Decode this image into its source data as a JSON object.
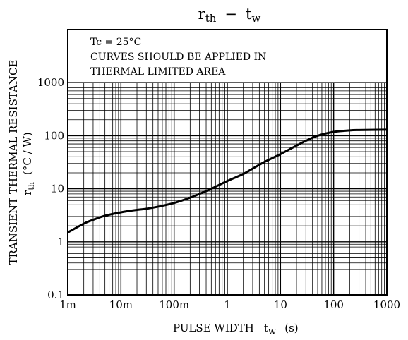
{
  "chart_data": {
    "type": "line",
    "title": {
      "main_a": "r",
      "sub_a": "th",
      "dash": "−",
      "main_b": "t",
      "sub_b": "w"
    },
    "annotations": [
      "Tc = 25°C",
      "CURVES SHOULD BE APPLIED IN",
      "THERMAL LIMITED AREA"
    ],
    "xlabel": {
      "text": "PULSE WIDTH",
      "symbol_main": "t",
      "symbol_sub": "W",
      "unit": "(s)"
    },
    "ylabel": {
      "line1": "TRANSIENT THERMAL RESISTANCE",
      "symbol_main": "r",
      "symbol_sub": "th",
      "unit": "(°C / W)"
    },
    "x_scale": "log",
    "y_scale": "log",
    "xlim": [
      0.001,
      1000
    ],
    "ylim": [
      0.1,
      10000
    ],
    "x_ticks": [
      {
        "value": 0.001,
        "label": "1m"
      },
      {
        "value": 0.01,
        "label": "10m"
      },
      {
        "value": 0.1,
        "label": "100m"
      },
      {
        "value": 1,
        "label": "1"
      },
      {
        "value": 10,
        "label": "10"
      },
      {
        "value": 100,
        "label": "100"
      },
      {
        "value": 1000,
        "label": "1000"
      }
    ],
    "y_ticks": [
      {
        "value": 0.1,
        "label": "0.1"
      },
      {
        "value": 1,
        "label": "1"
      },
      {
        "value": 10,
        "label": "10"
      },
      {
        "value": 100,
        "label": "100"
      },
      {
        "value": 1000,
        "label": "1000"
      }
    ],
    "grid": true,
    "series": [
      {
        "x": [
          0.001,
          0.002,
          0.003,
          0.005,
          0.01,
          0.02,
          0.03,
          0.05,
          0.1,
          0.2,
          0.3,
          0.5,
          1,
          2,
          3,
          5,
          10,
          20,
          30,
          50,
          100,
          200,
          300,
          500,
          1000
        ],
        "y": [
          1.5,
          2.2,
          2.6,
          3.1,
          3.6,
          4.0,
          4.2,
          4.6,
          5.4,
          6.8,
          8.0,
          10,
          14,
          19,
          24,
          32,
          45,
          65,
          80,
          100,
          118,
          126,
          128,
          129,
          130
        ]
      }
    ]
  },
  "colors": {
    "curve": "#000000",
    "grid": "#000000",
    "background": "#ffffff"
  }
}
